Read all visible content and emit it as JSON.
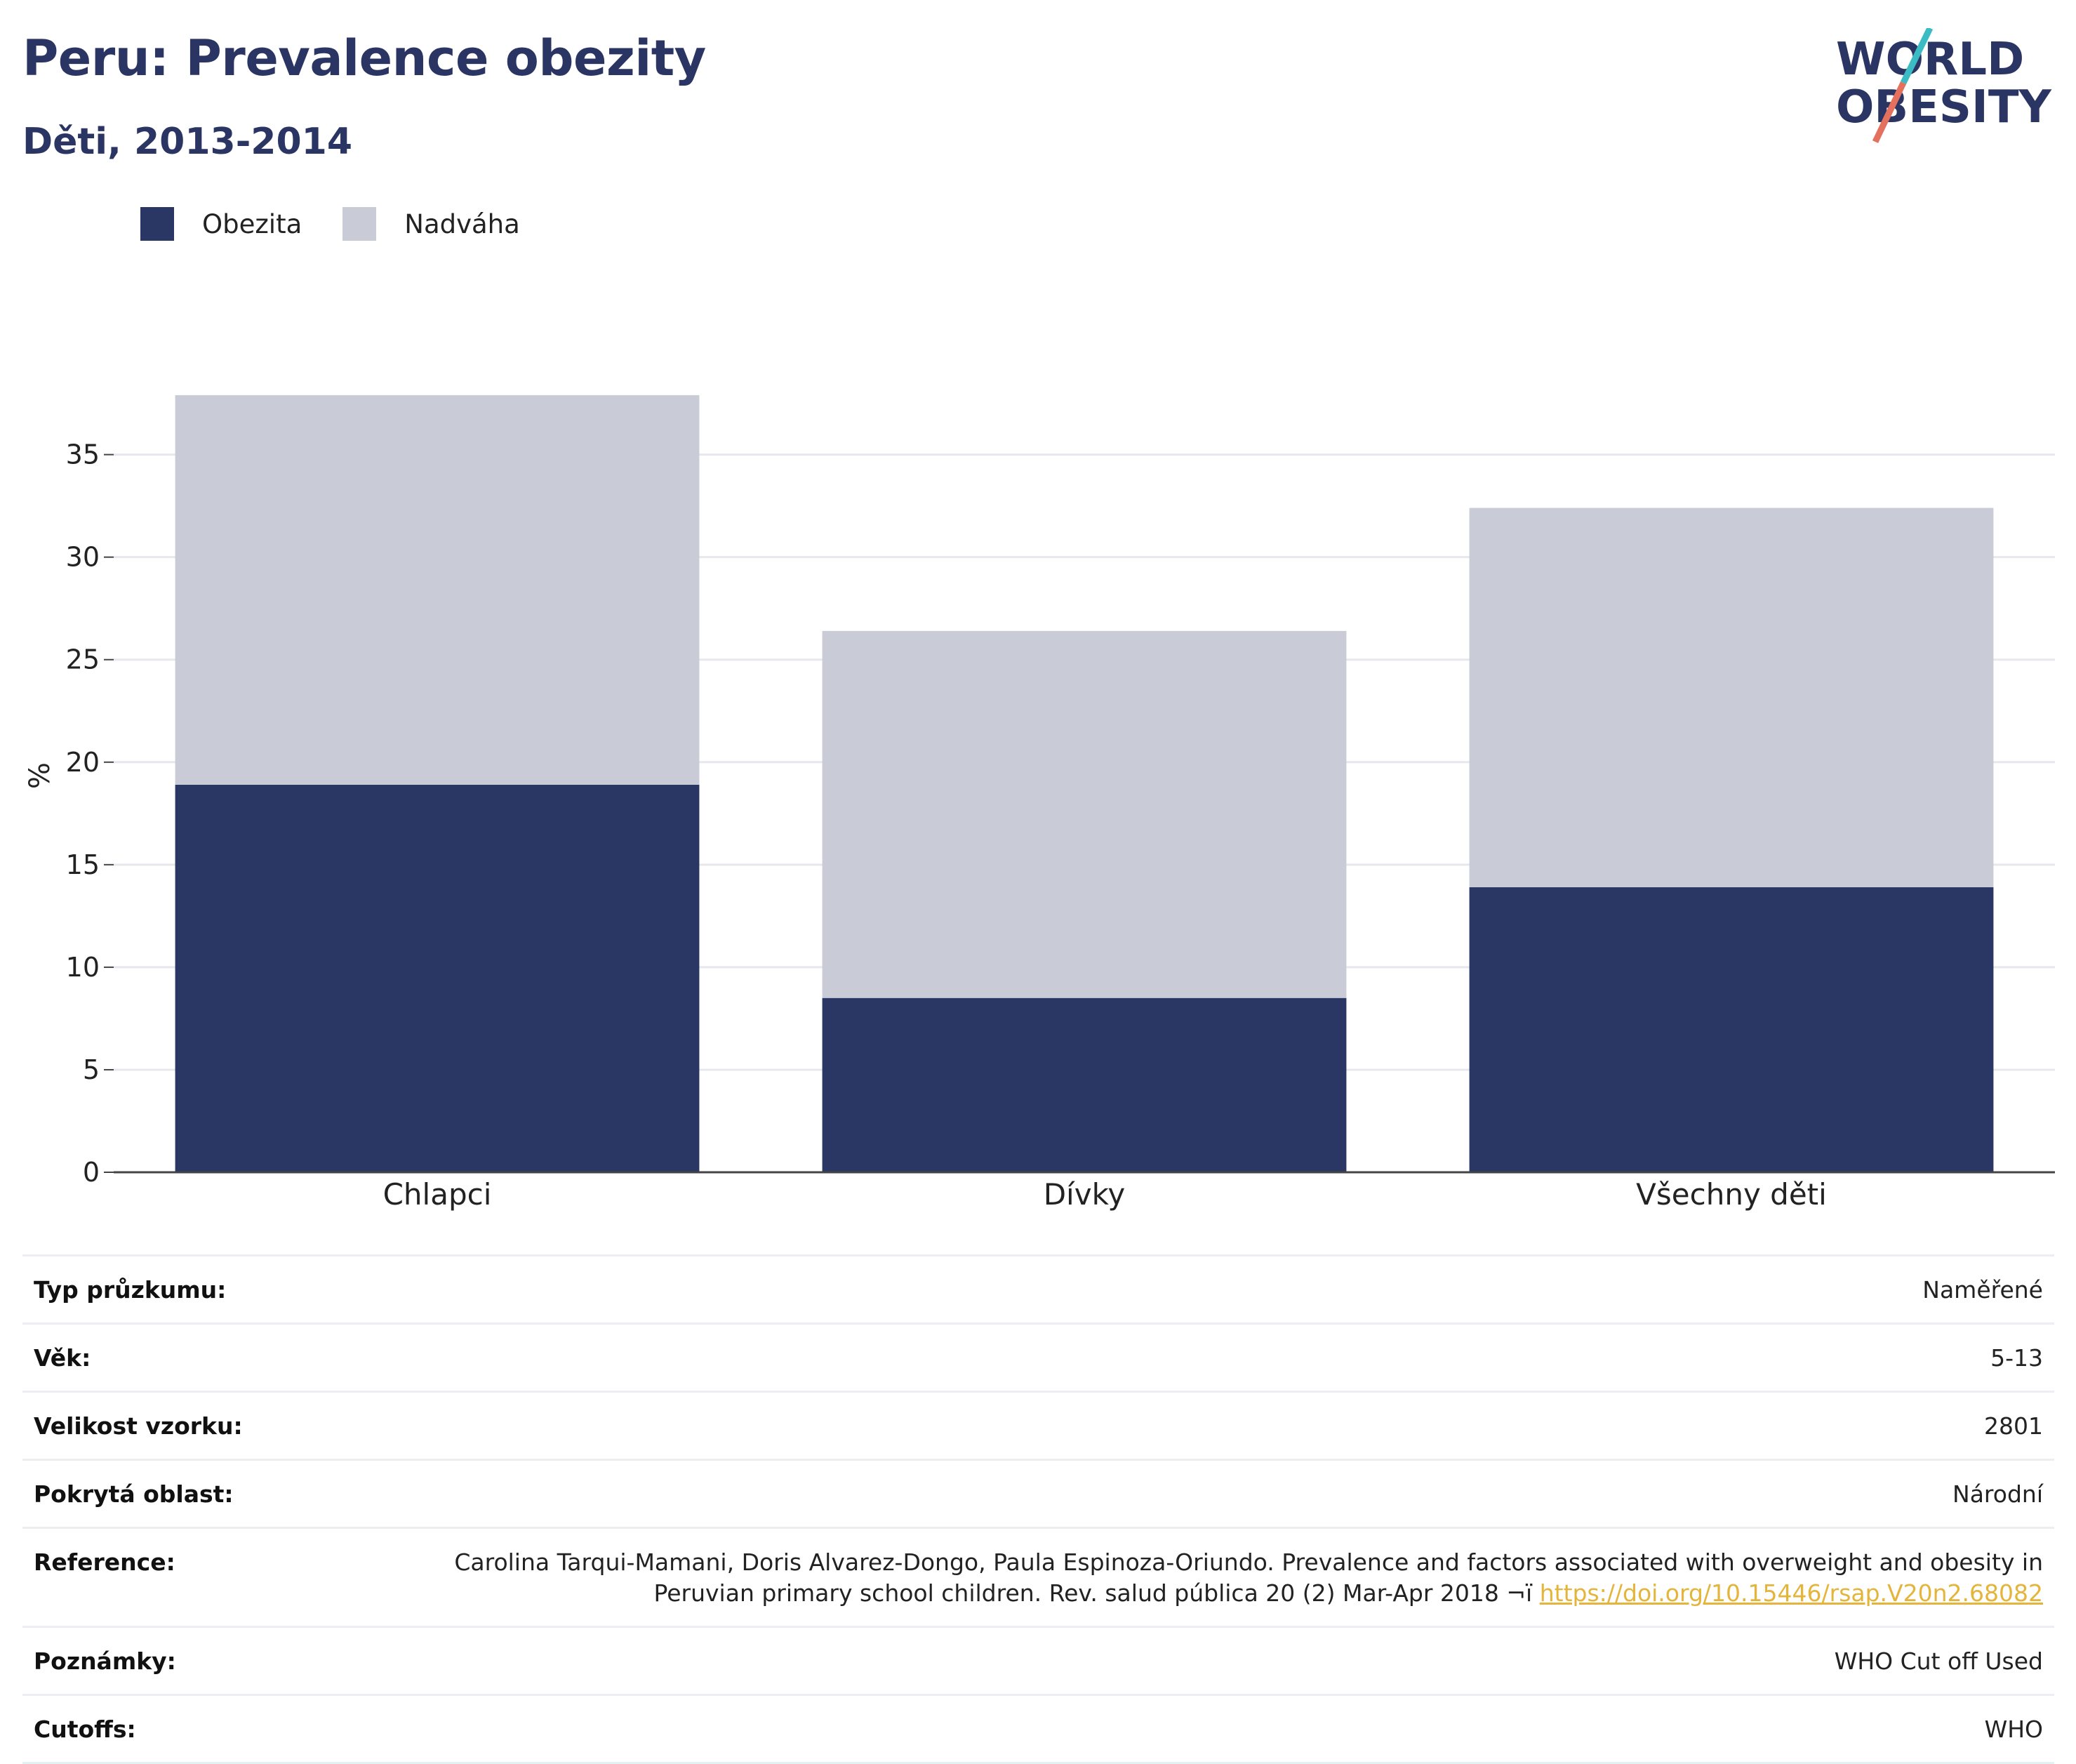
{
  "header": {
    "title": "Peru: Prevalence obezity",
    "subtitle": "Děti, 2013-2014"
  },
  "logo": {
    "line1": "WORLD",
    "line2": "OBESITY",
    "accent_teal": "#3bbcc4",
    "accent_coral": "#e4705e",
    "text_color": "#2a3564"
  },
  "colors": {
    "obesity": "#2a3664",
    "overweight": "#c9ccd7",
    "title": "#2a3564",
    "link": "#e4b53a"
  },
  "legend": [
    {
      "label": "Obezita",
      "color": "#2a3664"
    },
    {
      "label": "Nadváha",
      "color": "#c9ccd7"
    }
  ],
  "chart_data": {
    "type": "bar",
    "stacked": true,
    "categories": [
      "Chlapci",
      "Dívky",
      "Všechny děti"
    ],
    "series": [
      {
        "name": "Obezita",
        "values": [
          18.9,
          8.5,
          13.9
        ]
      },
      {
        "name": "Nadváha",
        "values": [
          19.0,
          17.9,
          18.5
        ]
      }
    ],
    "totals": [
      37.9,
      26.4,
      32.4
    ],
    "ylabel": "%",
    "ylim": [
      0,
      38
    ],
    "yticks": [
      0,
      5,
      10,
      15,
      20,
      25,
      30,
      35
    ],
    "grid": true,
    "legend_position": "top-left"
  },
  "metadata": [
    {
      "key": "Typ průzkumu:",
      "value": "Naměřené"
    },
    {
      "key": "Věk:",
      "value": "5-13"
    },
    {
      "key": "Velikost vzorku:",
      "value": "2801"
    },
    {
      "key": "Pokrytá oblast:",
      "value": "Národní"
    },
    {
      "key": "Reference:",
      "value": "Carolina Tarqui-Mamani, Doris Alvarez-Dongo, Paula Espinoza-Oriundo. Prevalence and factors associated with overweight and obesity in Peruvian primary school children. Rev. salud pública 20 (2) Mar-Apr 2018 ¬ï",
      "link": "https://doi.org/10.15446/rsap.V20n2.68082"
    },
    {
      "key": "Poznámky:",
      "value": "WHO Cut off Used"
    },
    {
      "key": "Cutoffs:",
      "value": "WHO"
    }
  ]
}
